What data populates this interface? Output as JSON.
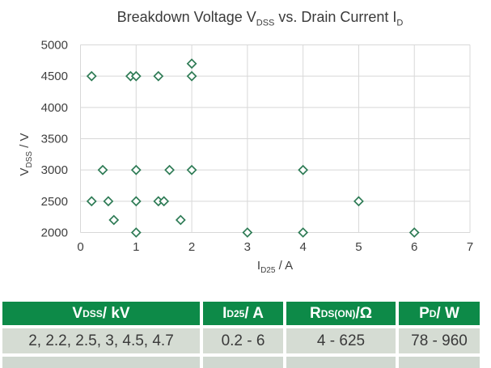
{
  "chart_data": {
    "type": "scatter",
    "title": "Breakdown Voltage V_DSS vs. Drain Current I_D",
    "title_parts": {
      "p1": "Breakdown Voltage V",
      "s1": "DSS",
      "p2": " vs. Drain Current I",
      "s2": "D"
    },
    "xlabel": "I_D25 / A",
    "xlabel_parts": {
      "p1": "I",
      "s1": "D25",
      "p2": " / A"
    },
    "ylabel": "V_DSS / V",
    "ylabel_parts": {
      "p1": "V",
      "s1": "DSS",
      "p2": " / V"
    },
    "xlim": [
      0,
      7
    ],
    "ylim": [
      2000,
      5000
    ],
    "x_ticks": [
      0,
      1,
      2,
      3,
      4,
      5,
      6,
      7
    ],
    "y_ticks": [
      2000,
      2500,
      3000,
      3500,
      4000,
      4500,
      5000
    ],
    "grid": true,
    "legend": false,
    "marker": {
      "shape": "open-diamond",
      "stroke": "#2e7b55",
      "fill": "#ffffff"
    },
    "points": [
      {
        "x": 0.2,
        "y": 4500
      },
      {
        "x": 0.9,
        "y": 4500
      },
      {
        "x": 1.0,
        "y": 4500
      },
      {
        "x": 1.4,
        "y": 4500
      },
      {
        "x": 2.0,
        "y": 4500
      },
      {
        "x": 2.0,
        "y": 4700
      },
      {
        "x": 0.4,
        "y": 3000
      },
      {
        "x": 1.0,
        "y": 3000
      },
      {
        "x": 1.6,
        "y": 3000
      },
      {
        "x": 2.0,
        "y": 3000
      },
      {
        "x": 4.0,
        "y": 3000
      },
      {
        "x": 0.2,
        "y": 2500
      },
      {
        "x": 0.5,
        "y": 2500
      },
      {
        "x": 1.0,
        "y": 2500
      },
      {
        "x": 1.4,
        "y": 2500
      },
      {
        "x": 1.5,
        "y": 2500
      },
      {
        "x": 5.0,
        "y": 2500
      },
      {
        "x": 0.6,
        "y": 2200
      },
      {
        "x": 1.8,
        "y": 2200
      },
      {
        "x": 1.0,
        "y": 2000
      },
      {
        "x": 3.0,
        "y": 2000
      },
      {
        "x": 4.0,
        "y": 2000
      },
      {
        "x": 6.0,
        "y": 2000
      }
    ]
  },
  "table": {
    "headers": [
      {
        "p": "V",
        "sub": "DSS",
        "post": " / kV"
      },
      {
        "p": "I",
        "sub": "D25",
        "post": " / A"
      },
      {
        "p": "R",
        "sub": "DS(ON)",
        "post": "/Ω"
      },
      {
        "p": "P",
        "sub": "D",
        "post": " / W"
      }
    ],
    "rows": [
      [
        "2, 2.2, 2.5, 3, 4.5, 4.7",
        "0.2 - 6",
        "4 - 625",
        "78 - 960"
      ]
    ]
  },
  "colors": {
    "header_green": "#0d8a48",
    "row_bg": "#d5dcd3",
    "partial_row_bg": "#d0d8d0",
    "grid_line": "#d8d8d8",
    "marker_stroke": "#2e7b55",
    "marker_fill": "#ffffff",
    "text": "#3a3a3a"
  }
}
